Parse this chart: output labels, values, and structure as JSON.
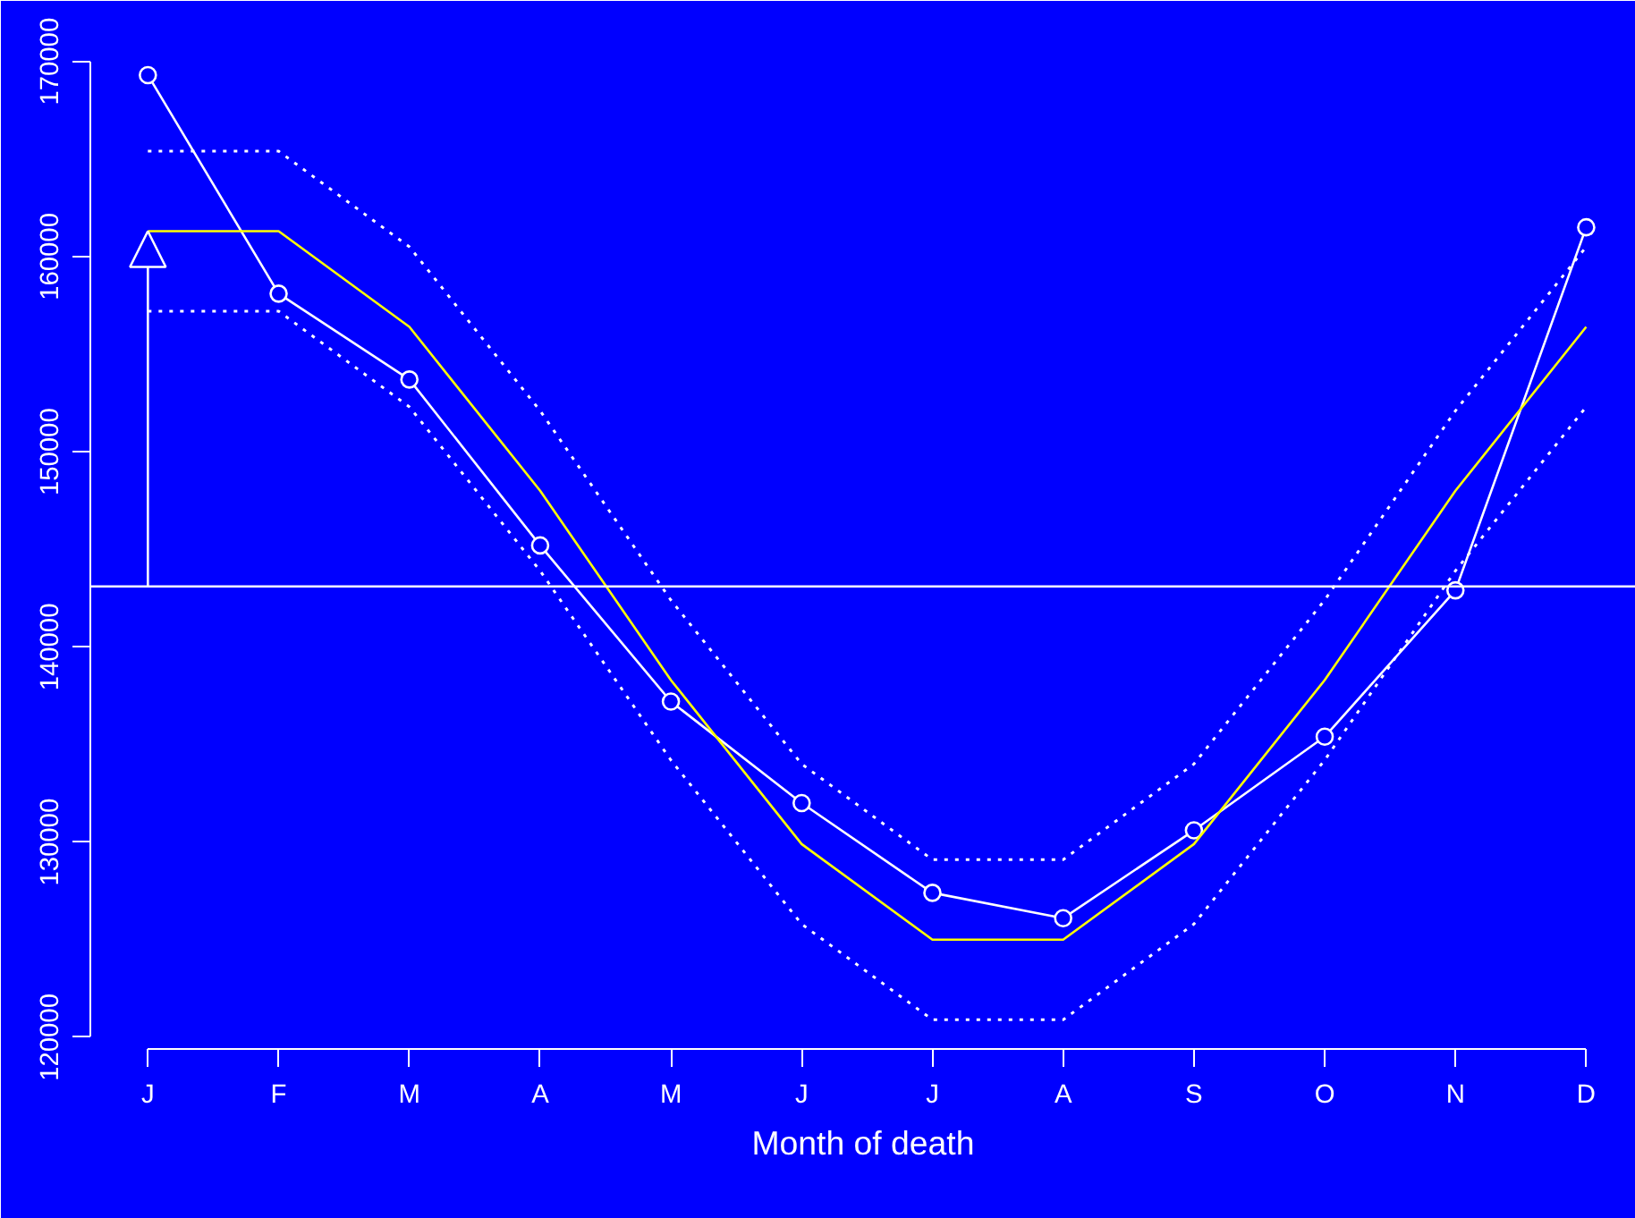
{
  "chart_data": {
    "type": "line",
    "xlabel": "Month of death",
    "categories": [
      "J",
      "F",
      "M",
      "A",
      "M",
      "J",
      "J",
      "A",
      "S",
      "O",
      "N",
      "D"
    ],
    "ylim": [
      119400,
      173100
    ],
    "yticks": [
      120000,
      130000,
      140000,
      150000,
      160000,
      170000
    ],
    "grid": false,
    "ref_lines": [
      {
        "axis": "y",
        "value": 143100,
        "color": "#ffffff"
      }
    ],
    "series": [
      {
        "color": "#ffffff",
        "marker": "circle",
        "values": [
          169300,
          158100,
          153700,
          145200,
          137200,
          132000,
          127400,
          126100,
          130600,
          135400,
          142900,
          161500
        ]
      },
      {
        "color": "#ffff00",
        "values": [
          161300,
          161300,
          156400,
          148000,
          138300,
          129900,
          125000,
          125000,
          129900,
          138300,
          148000,
          156400
        ]
      },
      {
        "color": "#ffffff",
        "line_style": "dotted",
        "values": [
          165400,
          165400,
          160500,
          152100,
          142400,
          134000,
          129100,
          129100,
          134000,
          142400,
          152100,
          160500
        ]
      },
      {
        "color": "#ffffff",
        "line_style": "dotted",
        "values": [
          157200,
          157200,
          152300,
          143900,
          134200,
          125800,
          120900,
          120900,
          125800,
          134200,
          143900,
          152300
        ]
      }
    ]
  }
}
